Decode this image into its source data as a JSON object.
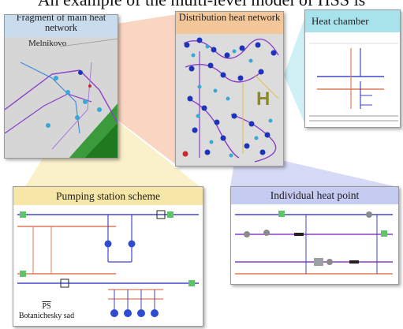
{
  "header": {
    "title_partial": "An example of the multi-level model of HSS is"
  },
  "panels": {
    "fragment": {
      "title": "Fragment of main heat network",
      "place": "Melnikovo",
      "colors": {
        "header": "#c9dcee",
        "body": "#d6d6d6"
      }
    },
    "distribution": {
      "title": "Distribution heat network",
      "colors": {
        "header": "#f3c79a",
        "body": "#dcdcdc"
      }
    },
    "heat_chamber": {
      "title": "Heat chamber",
      "colors": {
        "header": "#a8e3ec"
      }
    },
    "pumping": {
      "title": "Pumping station scheme",
      "caption_line1": "PS",
      "caption_line2": "Botanichesky sad",
      "colors": {
        "header": "#f6e7a8"
      }
    },
    "heat_point": {
      "title": "Individual heat point",
      "colors": {
        "header": "#c6cbf2"
      }
    }
  }
}
